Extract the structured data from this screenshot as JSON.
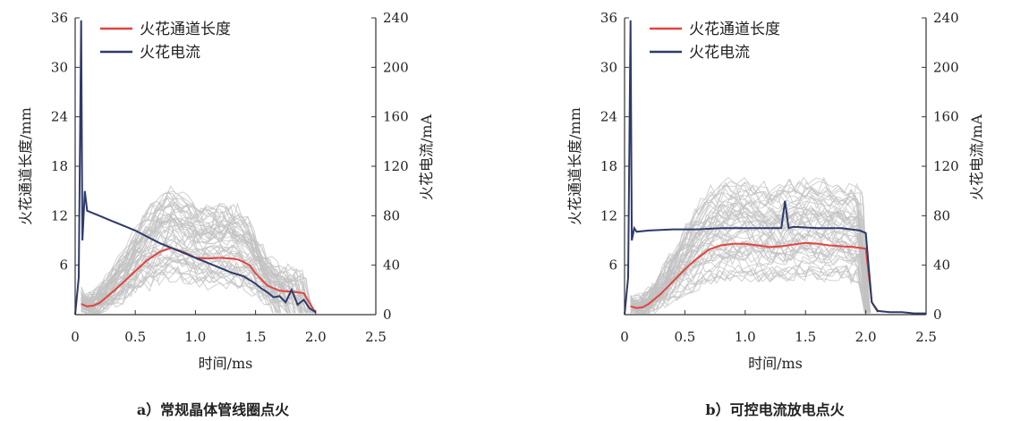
{
  "chart_data": [
    {
      "type": "line",
      "caption": "a）常规晶体管线圈点火",
      "xlabel": "时间/ms",
      "ylabel_left": "火花通道长度/mm",
      "ylabel_right": "火花电流/mA",
      "xlim": [
        0,
        2.5
      ],
      "ylim_left": [
        0,
        36
      ],
      "ylim_right": [
        0,
        240
      ],
      "xticks": [
        "0",
        "0.5",
        "1.0",
        "1.5",
        "2.0",
        "2.5"
      ],
      "yticks_left": [
        "6",
        "12",
        "18",
        "24",
        "30",
        "36"
      ],
      "yticks_right": [
        "0",
        "40",
        "80",
        "120",
        "160",
        "200",
        "240"
      ],
      "legend_position": "top-left",
      "colors": {
        "length": "#e0453f",
        "current": "#2d3a6b",
        "samples": "#c2c2c2"
      },
      "series": [
        {
          "name": "火花通道长度",
          "axis": "left",
          "x": [
            0.05,
            0.1,
            0.15,
            0.2,
            0.3,
            0.4,
            0.5,
            0.6,
            0.7,
            0.8,
            0.9,
            1.0,
            1.1,
            1.2,
            1.3,
            1.35,
            1.4,
            1.45,
            1.5,
            1.6,
            1.7,
            1.8,
            1.9,
            2.0
          ],
          "y": [
            1.3,
            1.0,
            1.1,
            1.4,
            2.6,
            3.9,
            5.3,
            6.6,
            7.6,
            8.1,
            7.6,
            6.9,
            6.8,
            6.9,
            6.8,
            6.7,
            6.4,
            6.0,
            5.0,
            3.5,
            2.9,
            2.8,
            2.6,
            0.2
          ]
        },
        {
          "name": "火花电流",
          "axis": "right",
          "x": [
            0.0,
            0.03,
            0.05,
            0.06,
            0.08,
            0.1,
            0.2,
            0.3,
            0.4,
            0.5,
            0.6,
            0.7,
            0.8,
            0.9,
            1.0,
            1.1,
            1.2,
            1.3,
            1.4,
            1.5,
            1.55,
            1.6,
            1.65,
            1.7,
            1.75,
            1.8,
            1.85,
            1.9,
            1.95,
            2.0
          ],
          "y": [
            0,
            30,
            238,
            60,
            100,
            84,
            80,
            76,
            72,
            68,
            63,
            58,
            54,
            50,
            46,
            42,
            38,
            34,
            31,
            25,
            21,
            18,
            14,
            15,
            10,
            20,
            8,
            12,
            5,
            2
          ]
        }
      ]
    },
    {
      "type": "line",
      "caption": "b）可控电流放电点火",
      "xlabel": "时间/ms",
      "ylabel_left": "火花通道长度/mm",
      "ylabel_right": "火花电流/mA",
      "xlim": [
        0,
        2.5
      ],
      "ylim_left": [
        0,
        36
      ],
      "ylim_right": [
        0,
        240
      ],
      "xticks": [
        "0",
        "0.5",
        "1.0",
        "1.5",
        "2.0",
        "2.5"
      ],
      "yticks_left": [
        "6",
        "12",
        "18",
        "24",
        "30",
        "36"
      ],
      "yticks_right": [
        "0",
        "40",
        "80",
        "120",
        "160",
        "200",
        "240"
      ],
      "legend_position": "top-left",
      "colors": {
        "length": "#e0453f",
        "current": "#2d3a6b",
        "samples": "#c2c2c2"
      },
      "series": [
        {
          "name": "火花通道长度",
          "axis": "left",
          "x": [
            0.05,
            0.1,
            0.15,
            0.2,
            0.3,
            0.4,
            0.5,
            0.6,
            0.7,
            0.8,
            0.9,
            1.0,
            1.1,
            1.2,
            1.3,
            1.4,
            1.5,
            1.6,
            1.7,
            1.8,
            1.9,
            2.0,
            2.05,
            2.1
          ],
          "y": [
            1.0,
            0.8,
            0.9,
            1.3,
            2.5,
            4.0,
            5.5,
            6.8,
            7.9,
            8.4,
            8.6,
            8.6,
            8.4,
            8.2,
            8.3,
            8.5,
            8.7,
            8.6,
            8.4,
            8.3,
            8.2,
            8.0,
            1.5,
            0.3
          ]
        },
        {
          "name": "火花电流",
          "axis": "right",
          "x": [
            0.0,
            0.03,
            0.05,
            0.06,
            0.08,
            0.1,
            0.2,
            0.4,
            0.6,
            0.8,
            1.0,
            1.2,
            1.3,
            1.33,
            1.36,
            1.4,
            1.6,
            1.8,
            1.95,
            2.0,
            2.05,
            2.1,
            2.2,
            2.3,
            2.4,
            2.5
          ],
          "y": [
            0,
            30,
            238,
            60,
            70,
            67,
            68,
            69,
            69,
            70,
            70,
            70,
            70,
            92,
            70,
            71,
            70,
            70,
            68,
            66,
            10,
            3,
            2,
            2,
            1,
            1
          ]
        }
      ]
    }
  ]
}
